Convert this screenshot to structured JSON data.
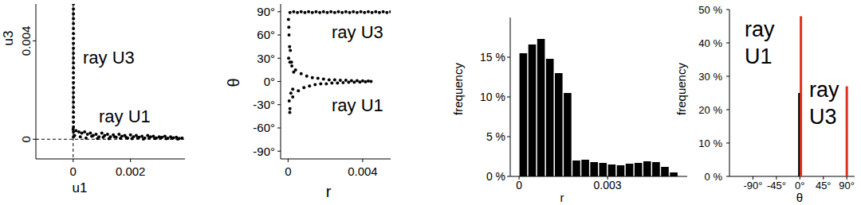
{
  "chart_data": [
    {
      "type": "scatter",
      "x_label": "u1",
      "y_label": "u3",
      "color": "#000000",
      "marker": "circle",
      "xlim": [
        -0.0013,
        0.0039
      ],
      "ylim": [
        -0.0008,
        0.0055
      ],
      "xticks": [
        0,
        0.002
      ],
      "yticks": [
        0,
        0.004
      ],
      "hlines": [
        0
      ],
      "vlines": [
        0
      ],
      "annotations": [
        "ray U3",
        "ray U1"
      ],
      "x": [
        1e-05,
        1e-05,
        1e-05,
        1e-05,
        1e-05,
        1e-05,
        1e-05,
        1e-05,
        1e-05,
        1e-05,
        1e-05,
        1e-05,
        1e-05,
        1e-05,
        1e-05,
        1e-05,
        1e-05,
        1e-05,
        1e-05,
        1e-05,
        1e-05,
        1e-05,
        1e-05,
        1e-05,
        1e-05,
        1e-05,
        1e-05,
        1e-05,
        0,
        0.0001,
        0.0002,
        0.0003,
        0.0004,
        0.0005,
        0.0006,
        0.0007,
        0.0008,
        0.0009,
        0.001,
        0.0011,
        0.0012,
        0.0013,
        0.0014,
        0.0015,
        0.0016,
        0.0017,
        0.0018,
        0.0019,
        0.002,
        0.0021,
        0.0022,
        0.0023,
        0.0024,
        0.0025,
        0.0026,
        0.0027,
        0.0028,
        0.0029,
        0.003,
        0.0031,
        0.0032,
        0.0033,
        0.0034,
        0.0035,
        0.0036,
        0.0037,
        0.0038,
        5e-05,
        0.00025,
        0.00045,
        0.00065,
        0.00085,
        0.00105,
        0.00125,
        0.00145,
        0.00165,
        0.00185,
        0.00205,
        0.00225,
        0.00245,
        0.00265,
        0.00285,
        0.00305,
        0.00325,
        0.00345,
        0.00365
      ],
      "y": [
        0.0001,
        0.0003,
        0.0005,
        0.0007,
        0.0009,
        0.0011,
        0.0013,
        0.0015,
        0.0017,
        0.0019,
        0.0021,
        0.0023,
        0.0025,
        0.0027,
        0.0029,
        0.0031,
        0.0033,
        0.0035,
        0.0037,
        0.0039,
        0.0041,
        0.0043,
        0.0045,
        0.0047,
        0.0049,
        0.0051,
        0.0053,
        0.0055,
        0.0004,
        0.00035,
        0.0003,
        0.00025,
        0.0003,
        0.0002,
        0.00025,
        0.00015,
        0.0002,
        0.0001,
        0.00025,
        0.00015,
        0.0002,
        0.0001,
        0.00018,
        8e-05,
        0.0002,
        0.00012,
        0.00015,
        5e-05,
        0.00018,
        0.0001,
        0.00015,
        8e-05,
        0.00012,
        5e-05,
        0.00015,
        0.0001,
        0.00012,
        5e-05,
        0.0001,
        8e-05,
        0.00012,
        4e-05,
        0.0001,
        6e-05,
        8e-05,
        3e-05,
        5e-05,
        0.00015,
        0.0001,
        5e-05,
        0.00012,
        3e-05,
        8e-05,
        2e-05,
        0.0001,
        4e-05,
        7e-05,
        2e-05,
        6e-05,
        1e-05,
        5e-05,
        3e-05,
        6e-05,
        2e-05,
        4e-05,
        1e-05
      ]
    },
    {
      "type": "scatter",
      "x_label": "r",
      "y_label": "θ",
      "color": "#000000",
      "marker": "circle",
      "xlim": [
        -0.0004,
        0.0055
      ],
      "ylim": [
        -100,
        100
      ],
      "xticks": [
        0,
        0.004
      ],
      "yticks": [
        {
          "value": -90,
          "label": "-90°"
        },
        {
          "value": -60,
          "label": "-60°"
        },
        {
          "value": -30,
          "label": "-30°"
        },
        {
          "value": 0,
          "label": "0°"
        },
        {
          "value": 30,
          "label": "30°"
        },
        {
          "value": 60,
          "label": "60°"
        },
        {
          "value": 90,
          "label": "90°"
        }
      ],
      "annotations": [
        "ray U3",
        "ray U1"
      ],
      "x": [
        0.0001,
        0.0003,
        0.0005,
        0.0007,
        0.0009,
        0.0011,
        0.0013,
        0.0015,
        0.0017,
        0.0019,
        0.0021,
        0.0023,
        0.0025,
        0.0027,
        0.0029,
        0.0031,
        0.0033,
        0.0035,
        0.0037,
        0.0039,
        0.0041,
        0.0043,
        0.0045,
        0.0047,
        0.0049,
        0.0051,
        0.0053,
        0.0055,
        0.0001,
        0.00025,
        0.0004,
        0.00055,
        0.0007,
        0.00085,
        0.001,
        0.00115,
        0.0013,
        0.00145,
        0.0016,
        0.00175,
        0.0019,
        0.00205,
        0.0022,
        0.00235,
        0.0025,
        0.00265,
        0.0028,
        0.00295,
        0.0031,
        0.00325,
        0.0034,
        0.00355,
        0.0037,
        0.00385,
        0.004,
        0.00415,
        0.0043,
        0.00445,
        2e-05,
        5e-05,
        8e-05,
        0.0001,
        3e-05,
        6e-05,
        0.00012,
        0.00015,
        0.0002,
        0.00025,
        0.0003,
        4e-05,
        9e-05,
        0.00018
      ],
      "y": [
        89,
        90,
        89,
        90,
        89,
        90,
        89,
        90,
        89,
        90,
        89,
        90,
        89,
        90,
        89,
        90,
        89,
        90,
        89,
        90,
        89,
        90,
        89,
        90,
        89,
        90,
        89,
        90,
        25,
        -20,
        15,
        -12,
        10,
        -8,
        7,
        -6,
        5,
        -4,
        4,
        -3,
        3,
        -3,
        2,
        -2,
        2,
        -2,
        1.5,
        -1.5,
        1.5,
        -1,
        1,
        -1,
        1,
        -0.8,
        0.8,
        -0.5,
        0.5,
        0,
        80,
        60,
        45,
        -35,
        30,
        -25,
        40,
        -15,
        20,
        -10,
        12,
        70,
        -40,
        25
      ]
    },
    {
      "type": "histogram",
      "x_label": "r",
      "y_label": "frequency",
      "color": "#000000",
      "xlim": [
        -0.0003,
        0.0057
      ],
      "ylim": [
        0,
        20
      ],
      "xticks": [
        0,
        0.003
      ],
      "yticks": [
        {
          "value": 0,
          "label": "0 %"
        },
        {
          "value": 5,
          "label": "5 %"
        },
        {
          "value": 10,
          "label": "10 %"
        },
        {
          "value": 15,
          "label": "15 %"
        }
      ],
      "bins": [
        0,
        0.0003,
        0.0006,
        0.0009,
        0.0012,
        0.0015,
        0.0018,
        0.0021,
        0.0024,
        0.0027,
        0.003,
        0.0033,
        0.0036,
        0.0039,
        0.0042,
        0.0045,
        0.0048,
        0.0051,
        0.0054
      ],
      "values": [
        15.5,
        16.6,
        17.3,
        14.8,
        13.0,
        10.5,
        2.0,
        2.1,
        1.8,
        1.7,
        1.5,
        1.4,
        1.6,
        1.7,
        1.9,
        1.8,
        1.2,
        0.5
      ]
    },
    {
      "type": "bar",
      "x_label": "θ",
      "y_label": "frequency",
      "xlim": [
        -135,
        105
      ],
      "ylim": [
        0,
        50
      ],
      "xticks": [
        {
          "value": -90,
          "label": "-90°"
        },
        {
          "value": -45,
          "label": "-45°"
        },
        {
          "value": 0,
          "label": "0°"
        },
        {
          "value": 45,
          "label": "45°"
        },
        {
          "value": 90,
          "label": "90°"
        }
      ],
      "yticks": [
        {
          "value": 0,
          "label": "0 %"
        },
        {
          "value": 10,
          "label": "10 %"
        },
        {
          "value": 20,
          "label": "20 %"
        },
        {
          "value": 30,
          "label": "30 %"
        },
        {
          "value": 40,
          "label": "40 %"
        },
        {
          "value": 50,
          "label": "50 %"
        }
      ],
      "annotations": [
        "ray U1",
        "ray U3"
      ],
      "x": [
        -1,
        2,
        90
      ],
      "values": [
        25,
        48,
        27
      ],
      "colors": [
        "#000000",
        "#e0301e",
        "#e0301e"
      ]
    }
  ]
}
